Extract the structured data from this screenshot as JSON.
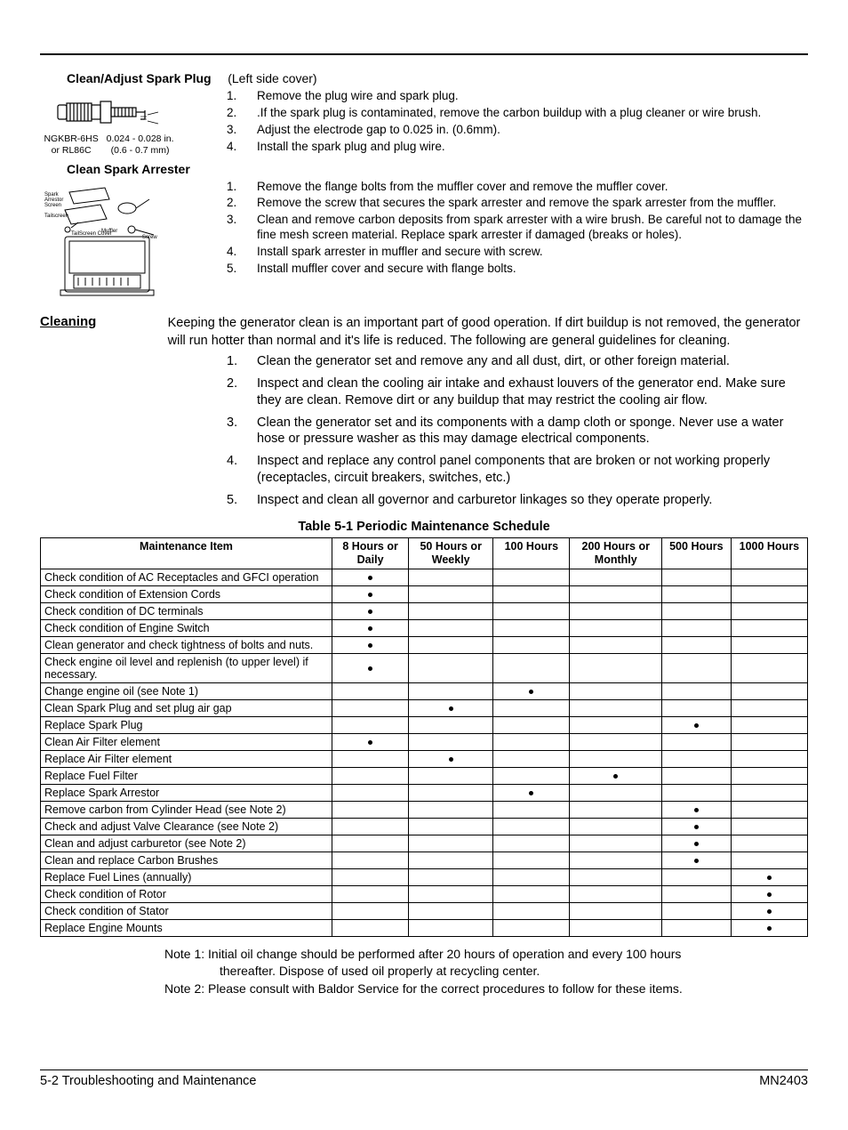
{
  "sections": {
    "spark_plug": {
      "heading": "Clean/Adjust Spark Plug",
      "note": "(Left side cover)",
      "figure_caption_top": "NGKBR-6HS\nor RL86C",
      "figure_caption_side": "0.024 - 0.028 in.\n(0.6 - 0.7 mm)",
      "items": [
        "Remove the plug wire and spark plug.",
        ".If the spark plug is contaminated, remove the carbon buildup with a plug cleaner or wire brush.",
        "Adjust the electrode gap to 0.025 in. (0.6mm).",
        "Install the spark plug and plug wire."
      ]
    },
    "arrester": {
      "heading": "Clean Spark Arrester",
      "items": [
        "Remove the flange bolts from the muffler cover and remove the muffler cover.",
        "Remove the screw that secures the spark arrester and remove the spark arrester from the muffler.",
        "Clean and remove carbon deposits from spark arrester with a wire brush.  Be careful not to damage the fine mesh screen material.  Replace spark arrester if damaged (breaks or holes).",
        "Install spark arrester in muffler and secure with screw.",
        "Install muffler cover and secure with flange bolts."
      ]
    },
    "cleaning": {
      "title": "Cleaning",
      "intro": "Keeping the generator clean is an important part of good operation.  If dirt buildup is not removed, the generator will run hotter than normal and it's life is reduced. The following are general guidelines for cleaning.",
      "items": [
        "Clean the generator set and remove any and all dust, dirt, or other foreign material.",
        "Inspect and clean the cooling air intake and exhaust louvers of the generator end.  Make sure they are clean.  Remove dirt or any buildup that may restrict the cooling air flow.",
        "Clean the generator set and its components with a damp cloth or sponge.  Never use a water hose or pressure washer as this may damage electrical components.",
        "Inspect and replace any control panel components that are broken or not working properly (receptacles, circuit breakers, switches, etc.)",
        "Inspect and clean all governor and carburetor linkages so they operate properly."
      ]
    }
  },
  "table": {
    "title": "Table 5-1  Periodic Maintenance Schedule",
    "headers": [
      "Maintenance Item",
      "8 Hours or\nDaily",
      "50 Hours or\nWeekly",
      "100 Hours",
      "200 Hours or\nMonthly",
      "500 Hours",
      "1000 Hours"
    ],
    "col_widths": [
      "38%",
      "10%",
      "11%",
      "10%",
      "12%",
      "9%",
      "10%"
    ],
    "rows": [
      {
        "item": "Check condition of AC Receptacles and GFCI operation",
        "marks": [
          1,
          0,
          0,
          0,
          0,
          0
        ]
      },
      {
        "item": "Check condition of Extension Cords",
        "marks": [
          1,
          0,
          0,
          0,
          0,
          0
        ]
      },
      {
        "item": "Check condition of DC terminals",
        "marks": [
          1,
          0,
          0,
          0,
          0,
          0
        ]
      },
      {
        "item": "Check condition of Engine Switch",
        "marks": [
          1,
          0,
          0,
          0,
          0,
          0
        ]
      },
      {
        "item": "Clean generator and check tightness of bolts and nuts.",
        "marks": [
          1,
          0,
          0,
          0,
          0,
          0
        ]
      },
      {
        "item": "Check engine oil level and replenish (to upper level) if necessary.",
        "marks": [
          1,
          0,
          0,
          0,
          0,
          0
        ]
      },
      {
        "item": "Change engine oil  (see Note 1)",
        "marks": [
          0,
          0,
          1,
          0,
          0,
          0
        ]
      },
      {
        "item": "Clean Spark Plug and set plug air gap",
        "marks": [
          0,
          1,
          0,
          0,
          0,
          0
        ]
      },
      {
        "item": "Replace Spark Plug",
        "marks": [
          0,
          0,
          0,
          0,
          1,
          0
        ]
      },
      {
        "item": "Clean Air Filter element",
        "marks": [
          1,
          0,
          0,
          0,
          0,
          0
        ]
      },
      {
        "item": "Replace Air Filter element",
        "marks": [
          0,
          1,
          0,
          0,
          0,
          0
        ]
      },
      {
        "item": "Replace Fuel Filter",
        "marks": [
          0,
          0,
          0,
          1,
          0,
          0
        ]
      },
      {
        "item": "Replace Spark Arrestor",
        "marks": [
          0,
          0,
          1,
          0,
          0,
          0
        ]
      },
      {
        "item": "Remove carbon from Cylinder Head (see Note 2)",
        "marks": [
          0,
          0,
          0,
          0,
          1,
          0
        ]
      },
      {
        "item": "Check and adjust Valve Clearance (see Note 2)",
        "marks": [
          0,
          0,
          0,
          0,
          1,
          0
        ]
      },
      {
        "item": "Clean and adjust carburetor  (see Note 2)",
        "marks": [
          0,
          0,
          0,
          0,
          1,
          0
        ]
      },
      {
        "item": "Clean and replace Carbon Brushes",
        "marks": [
          0,
          0,
          0,
          0,
          1,
          0
        ]
      },
      {
        "item": "Replace Fuel Lines (annually)",
        "marks": [
          0,
          0,
          0,
          0,
          0,
          1
        ]
      },
      {
        "item": "Check condition of Rotor",
        "marks": [
          0,
          0,
          0,
          0,
          0,
          1
        ]
      },
      {
        "item": "Check condition of Stator",
        "marks": [
          0,
          0,
          0,
          0,
          0,
          1
        ]
      },
      {
        "item": "Replace Engine Mounts",
        "marks": [
          0,
          0,
          0,
          0,
          0,
          1
        ]
      }
    ]
  },
  "notes": [
    "Note 1:  Initial oil change should be performed after 20 hours of operation and every 100 hours thereafter.  Dispose of used oil properly at recycling center.",
    "Note 2:  Please consult with Baldor Service for the correct procedures to follow for these items."
  ],
  "footer": {
    "left": "5-2 Troubleshooting and Maintenance",
    "right": "MN2403"
  }
}
